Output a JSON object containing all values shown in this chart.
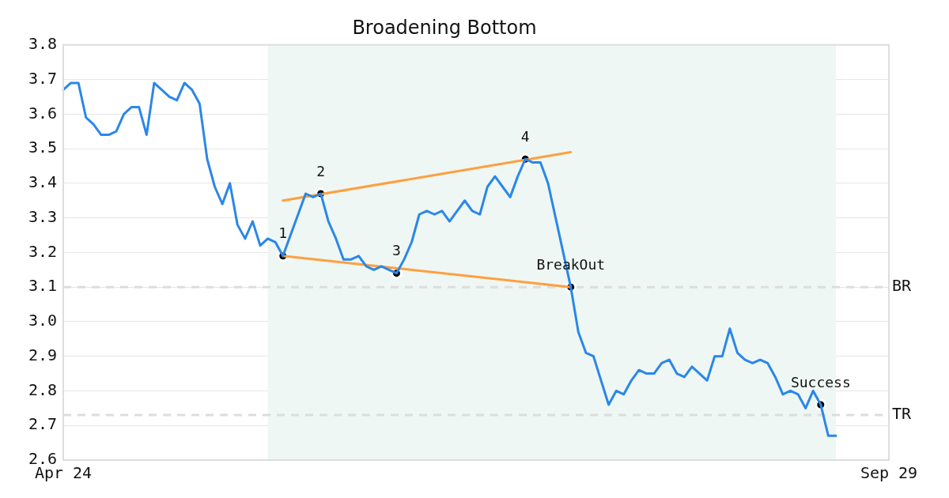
{
  "chart_data": {
    "type": "line",
    "title": "Broadening Bottom",
    "categories": [
      "Apr 24",
      null,
      null,
      null,
      null,
      null,
      null,
      null,
      null,
      null,
      null,
      null,
      null,
      null,
      null,
      null,
      null,
      null,
      null,
      null,
      null,
      null,
      null,
      null,
      null,
      null,
      null,
      null,
      null,
      null,
      null,
      null,
      null,
      null,
      null,
      null,
      null,
      null,
      null,
      null,
      null,
      null,
      null,
      null,
      null,
      null,
      null,
      null,
      null,
      null,
      null,
      null,
      null,
      null,
      null,
      null,
      null,
      null,
      null,
      null,
      null,
      null,
      null,
      null,
      null,
      null,
      null,
      null,
      null,
      null,
      null,
      null,
      null,
      null,
      null,
      null,
      null,
      null,
      null,
      null,
      null,
      null,
      null,
      null,
      null,
      null,
      null,
      null,
      null,
      null,
      null,
      null,
      null,
      null,
      null,
      null,
      null,
      null,
      null,
      null,
      null,
      null,
      null,
      null,
      null,
      null,
      null,
      null,
      null,
      "Sep 29"
    ],
    "ylim": [
      2.6,
      3.8
    ],
    "yticks": [
      2.6,
      2.7,
      2.8,
      2.9,
      {
        "value": 3,
        "label": "3.0"
      },
      3.1,
      3.2,
      3.3,
      3.4,
      3.5,
      3.6,
      3.7,
      3.8
    ],
    "grid": "y",
    "legend": false,
    "marker": "none",
    "line_style": "solid",
    "series": [
      {
        "color": "#2b87e8",
        "values": [
          3.67,
          3.69,
          3.69,
          3.59,
          3.57,
          3.54,
          3.54,
          3.55,
          3.6,
          3.62,
          3.62,
          3.54,
          3.69,
          3.67,
          3.65,
          3.64,
          3.69,
          3.67,
          3.63,
          3.47,
          3.39,
          3.34,
          3.4,
          3.28,
          3.24,
          3.29,
          3.22,
          3.24,
          3.23,
          3.19,
          3.25,
          3.31,
          3.37,
          3.36,
          3.37,
          3.29,
          3.24,
          3.18,
          3.18,
          3.19,
          3.16,
          3.15,
          3.16,
          3.15,
          3.14,
          3.18,
          3.23,
          3.31,
          3.32,
          3.31,
          3.32,
          3.29,
          3.32,
          3.35,
          3.32,
          3.31,
          3.39,
          3.42,
          3.39,
          3.36,
          3.42,
          3.47,
          3.46,
          3.46,
          3.4,
          3.3,
          3.2,
          3.1,
          2.97,
          2.91,
          2.9,
          2.83,
          2.76,
          2.8,
          2.79,
          2.83,
          2.86,
          2.85,
          2.85,
          2.88,
          2.89,
          2.85,
          2.84,
          2.87,
          2.85,
          2.83,
          2.9,
          2.9,
          2.98,
          2.91,
          2.89,
          2.88,
          2.89,
          2.88,
          2.84,
          2.79,
          2.8,
          2.79,
          2.75,
          2.8,
          2.76,
          2.67,
          2.67,
          null,
          null,
          null,
          null,
          null,
          null,
          null
        ]
      },
      {
        "type": "line",
        "color": "#ff9f40",
        "values": [
          null,
          null,
          null,
          null,
          null,
          null,
          null,
          null,
          null,
          null,
          null,
          null,
          null,
          null,
          null,
          null,
          null,
          null,
          null,
          null,
          null,
          null,
          null,
          null,
          null,
          null,
          null,
          null,
          null,
          3.35,
          null,
          null,
          null,
          null,
          null,
          null,
          null,
          null,
          null,
          null,
          null,
          null,
          null,
          null,
          null,
          null,
          null,
          null,
          null,
          null,
          null,
          null,
          null,
          null,
          null,
          null,
          null,
          null,
          null,
          null,
          null,
          null,
          null,
          null,
          null,
          null,
          null,
          3.49,
          null,
          null,
          null,
          null,
          null,
          null,
          null,
          null,
          null,
          null,
          null,
          null,
          null,
          null,
          null,
          null,
          null,
          null,
          null,
          null,
          null,
          null,
          null,
          null,
          null,
          null,
          null,
          null,
          null,
          null,
          null,
          null,
          null,
          null,
          null,
          null,
          null,
          null,
          null,
          null,
          null,
          null
        ]
      },
      {
        "type": "line",
        "color": "#ff9f40",
        "values": [
          null,
          null,
          null,
          null,
          null,
          null,
          null,
          null,
          null,
          null,
          null,
          null,
          null,
          null,
          null,
          null,
          null,
          null,
          null,
          null,
          null,
          null,
          null,
          null,
          null,
          null,
          null,
          null,
          null,
          3.19,
          null,
          null,
          null,
          null,
          null,
          null,
          null,
          null,
          null,
          null,
          null,
          null,
          null,
          null,
          null,
          null,
          null,
          null,
          null,
          null,
          null,
          null,
          null,
          null,
          null,
          null,
          null,
          null,
          null,
          null,
          null,
          null,
          null,
          null,
          null,
          null,
          null,
          3.1,
          null,
          null,
          null,
          null,
          null,
          null,
          null,
          null,
          null,
          null,
          null,
          null,
          null,
          null,
          null,
          null,
          null,
          null,
          null,
          null,
          null,
          null,
          null,
          null,
          null,
          null,
          null,
          null,
          null,
          null,
          null,
          null,
          null,
          null,
          null,
          null,
          null,
          null,
          null,
          null,
          null,
          null
        ]
      },
      {
        "type": "scatter",
        "marker": "circle",
        "name": "1",
        "color": "#000000",
        "values": [
          null,
          null,
          null,
          null,
          null,
          null,
          null,
          null,
          null,
          null,
          null,
          null,
          null,
          null,
          null,
          null,
          null,
          null,
          null,
          null,
          null,
          null,
          null,
          null,
          null,
          null,
          null,
          null,
          null,
          3.19,
          null,
          null,
          null,
          null,
          null,
          null,
          null,
          null,
          null,
          null,
          null,
          null,
          null,
          null,
          null,
          null,
          null,
          null,
          null,
          null,
          null,
          null,
          null,
          null,
          null,
          null,
          null,
          null,
          null,
          null,
          null,
          null,
          null,
          null,
          null,
          null,
          null,
          null,
          null,
          null,
          null,
          null,
          null,
          null,
          null,
          null,
          null,
          null,
          null,
          null,
          null,
          null,
          null,
          null,
          null,
          null,
          null,
          null,
          null,
          null,
          null,
          null,
          null,
          null,
          null,
          null,
          null,
          null,
          null,
          null,
          null,
          null,
          null,
          null,
          null,
          null,
          null,
          null,
          null,
          null
        ]
      },
      {
        "type": "scatter",
        "marker": "circle",
        "name": "2",
        "color": "#000000",
        "values": [
          null,
          null,
          null,
          null,
          null,
          null,
          null,
          null,
          null,
          null,
          null,
          null,
          null,
          null,
          null,
          null,
          null,
          null,
          null,
          null,
          null,
          null,
          null,
          null,
          null,
          null,
          null,
          null,
          null,
          null,
          null,
          null,
          null,
          null,
          3.37,
          null,
          null,
          null,
          null,
          null,
          null,
          null,
          null,
          null,
          null,
          null,
          null,
          null,
          null,
          null,
          null,
          null,
          null,
          null,
          null,
          null,
          null,
          null,
          null,
          null,
          null,
          null,
          null,
          null,
          null,
          null,
          null,
          null,
          null,
          null,
          null,
          null,
          null,
          null,
          null,
          null,
          null,
          null,
          null,
          null,
          null,
          null,
          null,
          null,
          null,
          null,
          null,
          null,
          null,
          null,
          null,
          null,
          null,
          null,
          null,
          null,
          null,
          null,
          null,
          null,
          null,
          null,
          null,
          null,
          null,
          null,
          null,
          null,
          null,
          null
        ]
      },
      {
        "type": "scatter",
        "marker": "circle",
        "name": "3",
        "color": "#000000",
        "values": [
          null,
          null,
          null,
          null,
          null,
          null,
          null,
          null,
          null,
          null,
          null,
          null,
          null,
          null,
          null,
          null,
          null,
          null,
          null,
          null,
          null,
          null,
          null,
          null,
          null,
          null,
          null,
          null,
          null,
          null,
          null,
          null,
          null,
          null,
          null,
          null,
          null,
          null,
          null,
          null,
          null,
          null,
          null,
          null,
          3.14,
          null,
          null,
          null,
          null,
          null,
          null,
          null,
          null,
          null,
          null,
          null,
          null,
          null,
          null,
          null,
          null,
          null,
          null,
          null,
          null,
          null,
          null,
          null,
          null,
          null,
          null,
          null,
          null,
          null,
          null,
          null,
          null,
          null,
          null,
          null,
          null,
          null,
          null,
          null,
          null,
          null,
          null,
          null,
          null,
          null,
          null,
          null,
          null,
          null,
          null,
          null,
          null,
          null,
          null,
          null,
          null,
          null,
          null,
          null,
          null,
          null,
          null,
          null,
          null,
          null
        ]
      },
      {
        "type": "scatter",
        "marker": "circle",
        "name": "4",
        "color": "#000000",
        "values": [
          null,
          null,
          null,
          null,
          null,
          null,
          null,
          null,
          null,
          null,
          null,
          null,
          null,
          null,
          null,
          null,
          null,
          null,
          null,
          null,
          null,
          null,
          null,
          null,
          null,
          null,
          null,
          null,
          null,
          null,
          null,
          null,
          null,
          null,
          null,
          null,
          null,
          null,
          null,
          null,
          null,
          null,
          null,
          null,
          null,
          null,
          null,
          null,
          null,
          null,
          null,
          null,
          null,
          null,
          null,
          null,
          null,
          null,
          null,
          null,
          null,
          3.47,
          null,
          null,
          null,
          null,
          null,
          null,
          null,
          null,
          null,
          null,
          null,
          null,
          null,
          null,
          null,
          null,
          null,
          null,
          null,
          null,
          null,
          null,
          null,
          null,
          null,
          null,
          null,
          null,
          null,
          null,
          null,
          null,
          null,
          null,
          null,
          null,
          null,
          null,
          null,
          null,
          null,
          null,
          null,
          null,
          null,
          null,
          null,
          null
        ]
      },
      {
        "type": "scatter",
        "marker": "circle",
        "name": "BreakOut",
        "color": "#000000",
        "values": [
          null,
          null,
          null,
          null,
          null,
          null,
          null,
          null,
          null,
          null,
          null,
          null,
          null,
          null,
          null,
          null,
          null,
          null,
          null,
          null,
          null,
          null,
          null,
          null,
          null,
          null,
          null,
          null,
          null,
          null,
          null,
          null,
          null,
          null,
          null,
          null,
          null,
          null,
          null,
          null,
          null,
          null,
          null,
          null,
          null,
          null,
          null,
          null,
          null,
          null,
          null,
          null,
          null,
          null,
          null,
          null,
          null,
          null,
          null,
          null,
          null,
          null,
          null,
          null,
          null,
          null,
          null,
          3.1,
          null,
          null,
          null,
          null,
          null,
          null,
          null,
          null,
          null,
          null,
          null,
          null,
          null,
          null,
          null,
          null,
          null,
          null,
          null,
          null,
          null,
          null,
          null,
          null,
          null,
          null,
          null,
          null,
          null,
          null,
          null,
          null,
          null,
          null,
          null,
          null,
          null,
          null,
          null,
          null,
          null,
          null
        ]
      },
      {
        "type": "scatter",
        "marker": "circle",
        "name": "Success",
        "color": "#000000",
        "values": [
          null,
          null,
          null,
          null,
          null,
          null,
          null,
          null,
          null,
          null,
          null,
          null,
          null,
          null,
          null,
          null,
          null,
          null,
          null,
          null,
          null,
          null,
          null,
          null,
          null,
          null,
          null,
          null,
          null,
          null,
          null,
          null,
          null,
          null,
          null,
          null,
          null,
          null,
          null,
          null,
          null,
          null,
          null,
          null,
          null,
          null,
          null,
          null,
          null,
          null,
          null,
          null,
          null,
          null,
          null,
          null,
          null,
          null,
          null,
          null,
          null,
          null,
          null,
          null,
          null,
          null,
          null,
          null,
          null,
          null,
          null,
          null,
          null,
          null,
          null,
          null,
          null,
          null,
          null,
          null,
          null,
          null,
          null,
          null,
          null,
          null,
          null,
          null,
          null,
          null,
          null,
          null,
          null,
          null,
          null,
          null,
          null,
          null,
          null,
          null,
          2.76,
          null,
          null,
          null,
          null,
          null,
          null,
          null,
          null,
          null
        ]
      }
    ],
    "ref_lines": [
      {
        "axis": "y",
        "value": 3.1,
        "label": "BR",
        "color": "#dddddd",
        "line_style": "dashed"
      },
      {
        "axis": "y",
        "value": 2.73,
        "label": "TR",
        "color": "#dddddd",
        "line_style": "dashed"
      }
    ]
  }
}
